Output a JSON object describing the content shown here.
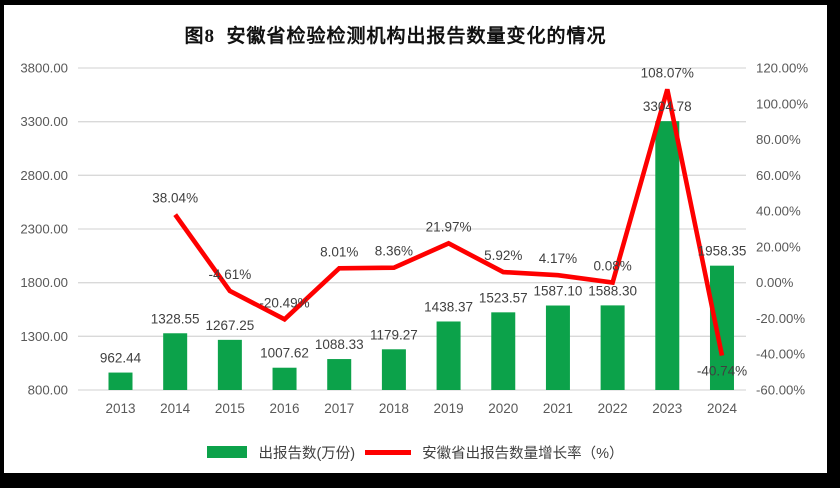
{
  "frame": {
    "outer_background": "#000000",
    "canvas_background": "#ffffff"
  },
  "colors": {
    "bar": "#0CA24A",
    "line": "#FE0000",
    "gridline": "#D9D9D9",
    "axis_text": "#595959",
    "data_label_text": "#404040",
    "title_text": "#111111"
  },
  "chart_data": {
    "type": "combo-bar-line",
    "title": "图8  安徽省检验检测机构出报告数量变化的情况",
    "categories": [
      "2013",
      "2014",
      "2015",
      "2016",
      "2017",
      "2018",
      "2019",
      "2020",
      "2021",
      "2022",
      "2023",
      "2024"
    ],
    "series": [
      {
        "name": "出报告数(万份)",
        "type": "bar",
        "axis": "left",
        "color": "#0CA24A",
        "values": [
          962.44,
          1328.55,
          1267.25,
          1007.62,
          1088.33,
          1179.27,
          1438.37,
          1523.57,
          1587.1,
          1588.3,
          3304.78,
          1958.35
        ],
        "labels": [
          "962.44",
          "1328.55",
          "1267.25",
          "1007.62",
          "1088.33",
          "1179.27",
          "1438.37",
          "1523.57",
          "1587.10",
          "1588.30",
          "3304.78",
          "1958.35"
        ]
      },
      {
        "name": "安徽省出报告数量增长率（%）",
        "type": "line",
        "axis": "right",
        "color": "#FE0000",
        "values": [
          null,
          38.04,
          -4.61,
          -20.49,
          8.01,
          8.36,
          21.97,
          5.92,
          4.17,
          0.08,
          108.07,
          -40.74
        ],
        "labels": [
          null,
          "38.04%",
          "-4.61%",
          "-20.49%",
          "8.01%",
          "8.36%",
          "21.97%",
          "5.92%",
          "4.17%",
          "0.08%",
          "108.07%",
          "-40.74%"
        ]
      }
    ],
    "left_axis": {
      "min": 800,
      "max": 3800,
      "step": 500,
      "ticks": [
        "3800.00",
        "3300.00",
        "2800.00",
        "2300.00",
        "1800.00",
        "1300.00",
        "800.00"
      ]
    },
    "right_axis": {
      "min": -60,
      "max": 120,
      "step": 20,
      "ticks": [
        "120.00%",
        "100.00%",
        "80.00%",
        "60.00%",
        "40.00%",
        "20.00%",
        "0.00%",
        "-20.00%",
        "-40.00%",
        "-60.00%"
      ]
    },
    "grid": "horizontal-only",
    "legend_position": "bottom"
  }
}
